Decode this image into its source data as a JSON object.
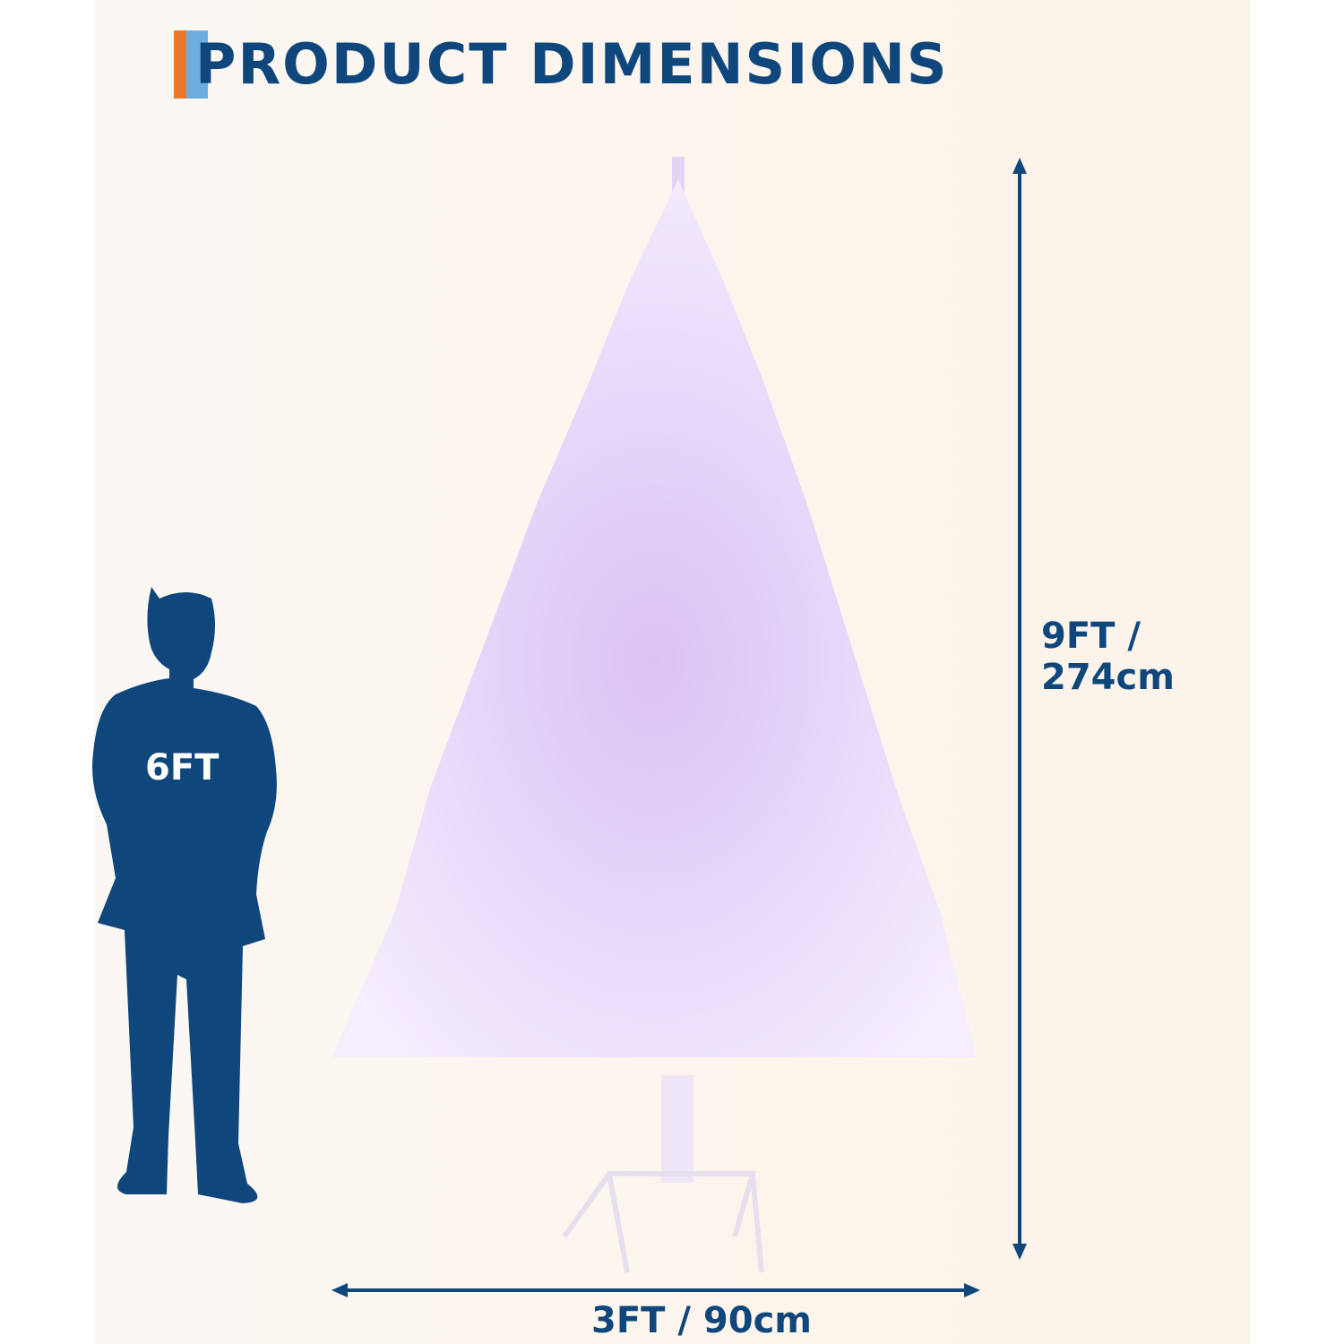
{
  "title": "PRODUCT DIMENSIONS",
  "person": {
    "label": "6FT"
  },
  "height_dimension": {
    "line1": "9FT /",
    "line2": "274cm"
  },
  "width_dimension": {
    "label": "3FT / 90cm"
  },
  "colors": {
    "navy": "#0f467c",
    "accent_orange": "#ea7a2b",
    "accent_blue": "#6caee2"
  }
}
